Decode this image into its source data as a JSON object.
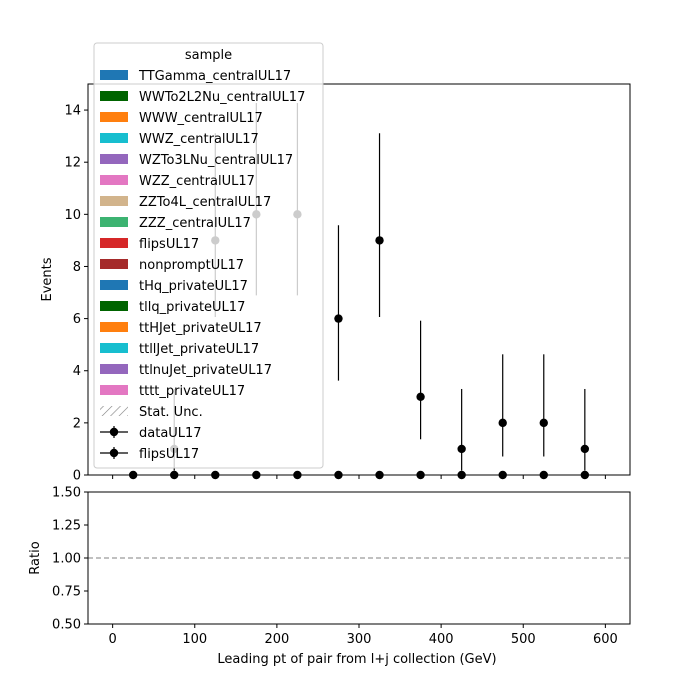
{
  "chart_data": [
    {
      "type": "scatter",
      "panel": "main",
      "title": "",
      "xlabel": "",
      "ylabel": "Events",
      "xlim": [
        -30,
        630
      ],
      "ylim": [
        0,
        15
      ],
      "yticks": [
        "0",
        "2",
        "4",
        "6",
        "8",
        "10",
        "12",
        "14"
      ],
      "ytick_values": [
        0,
        2,
        4,
        6,
        8,
        10,
        12,
        14
      ],
      "xticks": [
        0,
        100,
        200,
        300,
        400,
        500,
        600
      ],
      "legend": {
        "title": "sample",
        "position": "upper-left",
        "entries": [
          {
            "label": "TTGamma_centralUL17",
            "kind": "patch",
            "color": "#1f77b4"
          },
          {
            "label": "WWTo2L2Nu_centralUL17",
            "kind": "patch",
            "color": "#006400"
          },
          {
            "label": "WWW_centralUL17",
            "kind": "patch",
            "color": "#ff7f0e"
          },
          {
            "label": "WWZ_centralUL17",
            "kind": "patch",
            "color": "#17becf"
          },
          {
            "label": "WZTo3LNu_centralUL17",
            "kind": "patch",
            "color": "#9467bd"
          },
          {
            "label": "WZZ_centralUL17",
            "kind": "patch",
            "color": "#e377c2"
          },
          {
            "label": "ZZTo4L_centralUL17",
            "kind": "patch",
            "color": "#d2b48c"
          },
          {
            "label": "ZZZ_centralUL17",
            "kind": "patch",
            "color": "#3cb371"
          },
          {
            "label": "flipsUL17",
            "kind": "patch",
            "color": "#d62728"
          },
          {
            "label": "nonpromptUL17",
            "kind": "patch",
            "color": "#a52a2a"
          },
          {
            "label": "tHq_privateUL17",
            "kind": "patch",
            "color": "#1f77b4"
          },
          {
            "label": "tllq_privateUL17",
            "kind": "patch",
            "color": "#006400"
          },
          {
            "label": "ttHJet_privateUL17",
            "kind": "patch",
            "color": "#ff7f0e"
          },
          {
            "label": "ttllJet_privateUL17",
            "kind": "patch",
            "color": "#17becf"
          },
          {
            "label": "ttlnuJet_privateUL17",
            "kind": "patch",
            "color": "#9467bd"
          },
          {
            "label": "tttt_privateUL17",
            "kind": "patch",
            "color": "#e377c2"
          },
          {
            "label": "Stat. Unc.",
            "kind": "hatch",
            "color": "#808080"
          },
          {
            "label": "dataUL17",
            "kind": "errorbar",
            "color": "#000000"
          },
          {
            "label": "flipsUL17",
            "kind": "errorbar",
            "color": "#000000"
          }
        ]
      },
      "series": [
        {
          "name": "dataUL17",
          "color": "#000000",
          "x": [
            25,
            75,
            125,
            175,
            225,
            275,
            325,
            375,
            425,
            475,
            525,
            575
          ],
          "y": [
            0,
            0,
            0,
            0,
            0,
            0,
            0,
            0,
            0,
            0,
            0,
            0
          ],
          "yerr_low": [
            0,
            0,
            0,
            0,
            0,
            0,
            0,
            0,
            0,
            0,
            0,
            0
          ],
          "yerr_high": [
            0,
            0,
            0,
            0,
            0,
            0,
            0,
            0,
            0,
            0,
            0,
            0
          ]
        },
        {
          "name": "flipsUL17",
          "color": "#000000",
          "x": [
            75,
            125,
            175,
            225,
            275,
            325,
            375,
            425,
            475,
            525,
            575
          ],
          "y": [
            1,
            9,
            10,
            10,
            6,
            9,
            3,
            1,
            2,
            2,
            1
          ],
          "yerr_low": [
            0.83,
            2.94,
            3.11,
            3.11,
            2.38,
            2.94,
            1.63,
            0.83,
            1.29,
            1.29,
            0.83
          ],
          "yerr_high": [
            2.3,
            4.11,
            4.27,
            4.27,
            3.58,
            4.11,
            2.92,
            2.3,
            2.63,
            2.63,
            2.3
          ]
        }
      ]
    },
    {
      "type": "line",
      "panel": "ratio",
      "title": "",
      "xlabel": "Leading pt of pair from l+j collection (GeV)",
      "ylabel": "Ratio",
      "xlim": [
        -30,
        630
      ],
      "ylim": [
        0.5,
        1.5
      ],
      "yticks": [
        "0.50",
        "0.75",
        "1.00",
        "1.25",
        "1.50"
      ],
      "ytick_values": [
        0.5,
        0.75,
        1.0,
        1.25,
        1.5
      ],
      "xticks": [
        "0",
        "100",
        "200",
        "300",
        "400",
        "500",
        "600"
      ],
      "xtick_values": [
        0,
        100,
        200,
        300,
        400,
        500,
        600
      ],
      "reference_line": {
        "y": 1.0,
        "style": "dashed",
        "color": "#808080"
      }
    }
  ]
}
